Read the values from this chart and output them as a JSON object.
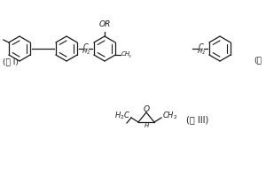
{
  "background_color": "#ffffff",
  "text_color": "#1a1a1a",
  "line_color": "#1a1a1a",
  "line_width": 0.9,
  "font_size": 6.5,
  "formula_I_label": "(式 I)",
  "formula_II_label": "(式",
  "formula_III_label": "(式 III)"
}
